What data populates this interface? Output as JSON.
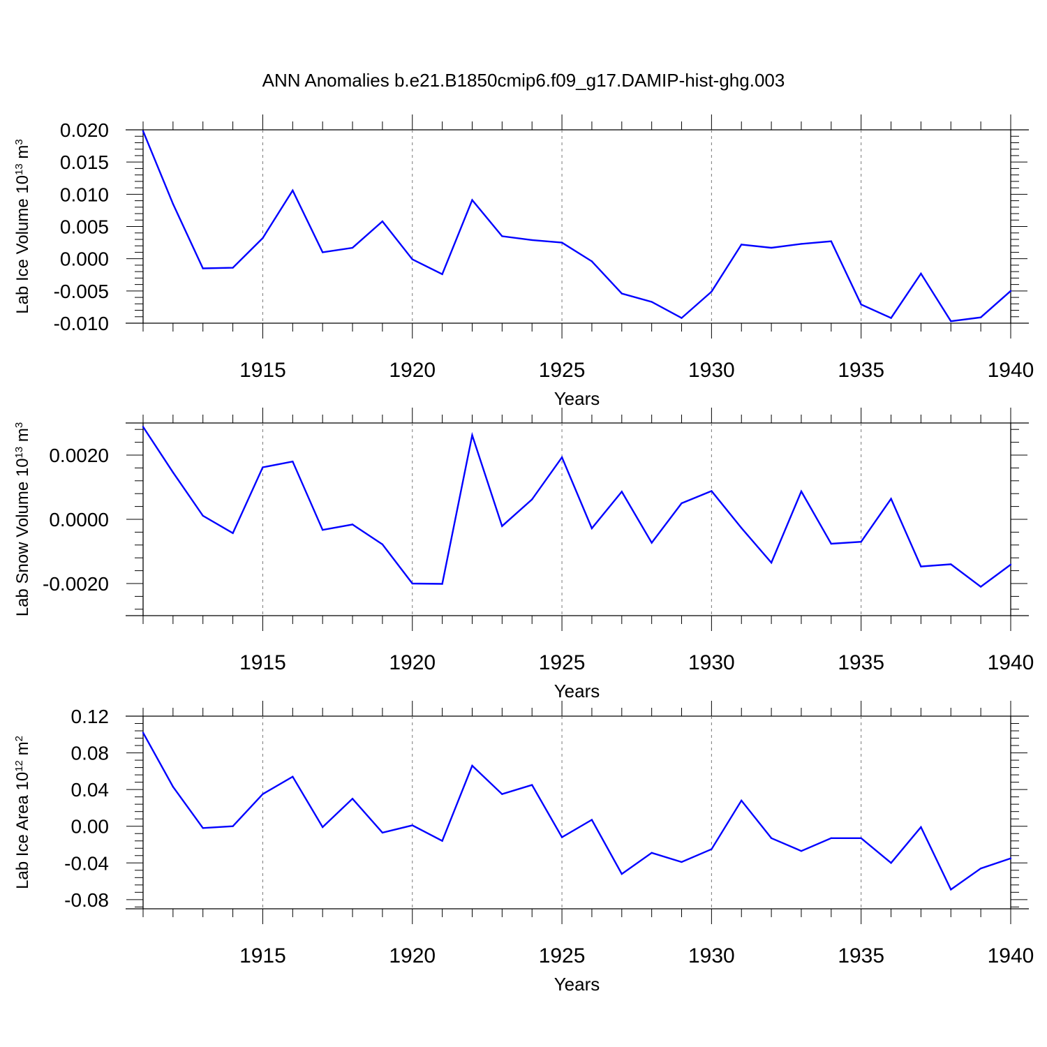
{
  "figure": {
    "title": "ANN Anomalies b.e21.B1850cmip6.f09_g17.DAMIP-hist-ghg.003",
    "line_color": "#0000ff",
    "grid_color": "#777777"
  },
  "chart_data": [
    {
      "type": "line",
      "ylabel": {
        "text": "Lab Ice Volume 10",
        "exponent": "13",
        "unit": " m",
        "unit_exponent": "3"
      },
      "xlabel": "Years",
      "xlim": [
        1911,
        1940
      ],
      "ylim": [
        -0.01,
        0.02
      ],
      "xticks": [
        1915,
        1920,
        1925,
        1930,
        1935,
        1940
      ],
      "yticks": [
        "0.020",
        "0.015",
        "0.010",
        "0.005",
        "0.000",
        "-0.005",
        "-0.010"
      ],
      "ytick_values": [
        0.02,
        0.015,
        0.01,
        0.005,
        0.0,
        -0.005,
        -0.01
      ],
      "grid": "vertical dashed at major x ticks",
      "x": [
        1911,
        1912,
        1913,
        1914,
        1915,
        1916,
        1917,
        1918,
        1919,
        1920,
        1921,
        1922,
        1923,
        1924,
        1925,
        1926,
        1927,
        1928,
        1929,
        1930,
        1931,
        1932,
        1933,
        1934,
        1935,
        1936,
        1937,
        1938,
        1939,
        1940
      ],
      "values": [
        0.0198,
        0.0085,
        -0.0015,
        -0.0014,
        0.0032,
        0.0106,
        0.001,
        0.0017,
        0.0058,
        -0.0001,
        -0.0024,
        0.0091,
        0.0035,
        0.0029,
        0.0025,
        -0.0004,
        -0.0054,
        -0.0067,
        -0.0092,
        -0.0051,
        0.0022,
        0.0017,
        0.0023,
        0.0027,
        -0.0071,
        -0.0092,
        -0.0023,
        -0.0097,
        -0.0091,
        -0.005
      ]
    },
    {
      "type": "line",
      "ylabel": {
        "text": "Lab Snow Volume 10",
        "exponent": "13",
        "unit": " m",
        "unit_exponent": "3"
      },
      "xlabel": "Years",
      "xlim": [
        1911,
        1940
      ],
      "ylim": [
        -0.003,
        0.003
      ],
      "xticks": [
        1915,
        1920,
        1925,
        1930,
        1935,
        1940
      ],
      "yticks": [
        "0.0020",
        "0.0000",
        "-0.0020"
      ],
      "ytick_values": [
        0.002,
        0.0,
        -0.002
      ],
      "grid": "vertical dashed at major x ticks",
      "x": [
        1911,
        1912,
        1913,
        1914,
        1915,
        1916,
        1917,
        1918,
        1919,
        1920,
        1921,
        1922,
        1923,
        1924,
        1925,
        1926,
        1927,
        1928,
        1929,
        1930,
        1931,
        1932,
        1933,
        1934,
        1935,
        1936,
        1937,
        1938,
        1939,
        1940
      ],
      "values": [
        0.00288,
        0.00146,
        0.00011,
        -0.00043,
        0.00162,
        0.0018,
        -0.00033,
        -0.00016,
        -0.00078,
        -0.002,
        -0.00201,
        0.00262,
        -0.00021,
        0.00062,
        0.00193,
        -0.00028,
        0.00086,
        -0.00073,
        0.0005,
        0.00088,
        -0.00027,
        -0.00135,
        0.00087,
        -0.00076,
        -0.0007,
        0.00064,
        -0.00147,
        -0.0014,
        -0.0021,
        -0.00141
      ]
    },
    {
      "type": "line",
      "ylabel": {
        "text": "Lab Ice Area 10",
        "exponent": "12",
        "unit": " m",
        "unit_exponent": "2"
      },
      "xlabel": "Years",
      "xlim": [
        1911,
        1940
      ],
      "ylim": [
        -0.09,
        0.12
      ],
      "xticks": [
        1915,
        1920,
        1925,
        1930,
        1935,
        1940
      ],
      "yticks": [
        "0.12",
        "0.08",
        "0.04",
        "0.00",
        "-0.04",
        "-0.08"
      ],
      "ytick_values": [
        0.12,
        0.08,
        0.04,
        0.0,
        -0.04,
        -0.08
      ],
      "grid": "vertical dashed at major x ticks",
      "x": [
        1911,
        1912,
        1913,
        1914,
        1915,
        1916,
        1917,
        1918,
        1919,
        1920,
        1921,
        1922,
        1923,
        1924,
        1925,
        1926,
        1927,
        1928,
        1929,
        1930,
        1931,
        1932,
        1933,
        1934,
        1935,
        1936,
        1937,
        1938,
        1939,
        1940
      ],
      "values": [
        0.102,
        0.043,
        -0.002,
        0.0,
        0.035,
        0.054,
        -0.001,
        0.03,
        -0.007,
        0.001,
        -0.016,
        0.066,
        0.035,
        0.045,
        -0.012,
        0.007,
        -0.052,
        -0.029,
        -0.039,
        -0.025,
        0.028,
        -0.013,
        -0.027,
        -0.013,
        -0.013,
        -0.04,
        -0.001,
        -0.069,
        -0.046,
        -0.035
      ]
    }
  ]
}
